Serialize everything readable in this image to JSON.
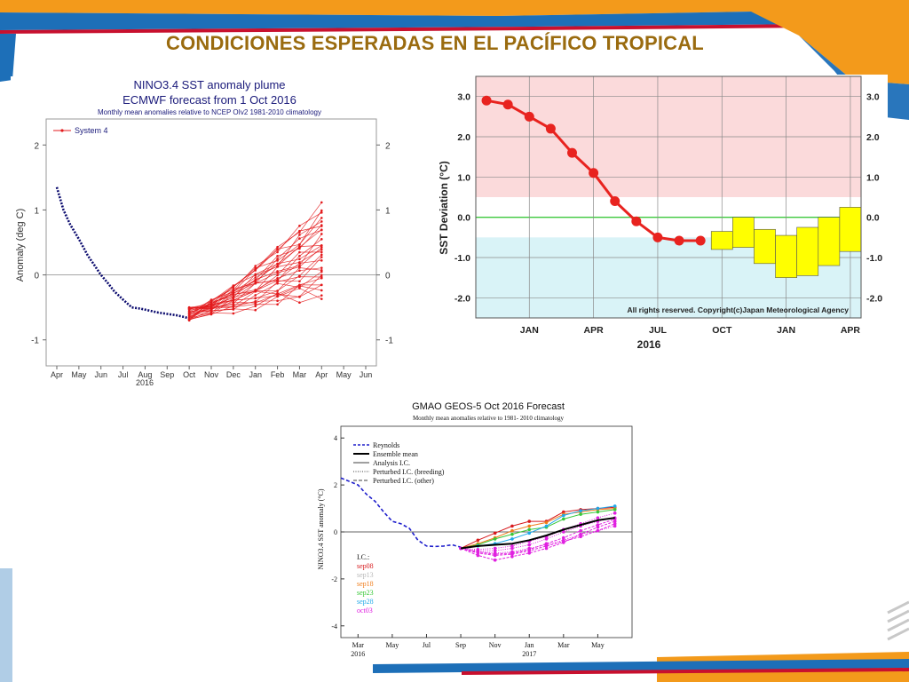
{
  "slide": {
    "title": "CONDICIONES ESPERADAS EN EL PACÍFICO TROPICAL"
  },
  "colors": {
    "title": "#9a6b0f",
    "accent_orange": "#f39a1b",
    "accent_blue": "#1d6fb8",
    "ecmwf_red": "#e31a1c",
    "jma_red": "#e8231f",
    "jma_yellow": "#ffff00",
    "jma_warm_band": "#fbdadb",
    "jma_cool_band": "#d9f3f7",
    "gmao_blue": "#1f1fcc"
  },
  "chart_data": [
    {
      "id": "ecmwf",
      "type": "line",
      "title": "NINO3.4 SST anomaly plume",
      "subtitle": "ECMWF forecast from 1 Oct 2016",
      "note": "Monthly mean anomalies relative to NCEP OIv2 1981-2010 climatology",
      "ylabel": "Anomaly (deg C)",
      "year_label": "2016",
      "legend": [
        "System 4"
      ],
      "legend_position": "top-left",
      "ylim": [
        -1.4,
        2.4
      ],
      "yticks": [
        -1,
        0,
        1,
        2
      ],
      "xticks": [
        "Apr",
        "May",
        "Jun",
        "Jul",
        "Aug",
        "Sep",
        "Oct",
        "Nov",
        "Dec",
        "Jan",
        "Feb",
        "Mar",
        "Apr",
        "May",
        "Jun"
      ],
      "observed": [
        1.35,
        1.0,
        0.78,
        0.55,
        0.3,
        0.15,
        0.0,
        -0.12,
        -0.25,
        -0.38,
        -0.5,
        -0.52,
        -0.55,
        -0.58,
        -0.6,
        -0.62,
        -0.65,
        -0.67
      ],
      "observed_x": [
        0.0,
        0.3,
        0.6,
        1.0,
        1.4,
        1.7,
        2.0,
        2.3,
        2.6,
        3.0,
        3.4,
        3.8,
        4.2,
        4.6,
        5.0,
        5.4,
        5.8,
        6.0
      ],
      "forecast_x": [
        6,
        7,
        8,
        9,
        10,
        11,
        12
      ],
      "forecast_start": -0.6,
      "forecast_end_values": [
        1.0,
        0.98,
        0.93,
        0.9,
        0.85,
        0.8,
        0.75,
        0.7,
        0.65,
        0.6,
        0.55,
        0.5,
        0.45,
        0.42,
        0.4,
        0.35,
        0.3,
        0.25,
        0.2,
        0.15,
        0.1,
        0.05,
        0.0,
        -0.05,
        -0.1,
        -0.15,
        -0.18,
        -0.2,
        -0.25,
        -0.3
      ],
      "forecast_min": -0.75,
      "series_color": "#e31a1c"
    },
    {
      "id": "jma",
      "type": "line",
      "ylabel": "SST Deviation (°C)",
      "copyright": "All rights reserved. Copyright(c)Japan Meteorological Agency",
      "year_label": "2016",
      "ylim": [
        -2.5,
        3.5
      ],
      "yticks": [
        -2.0,
        -1.0,
        0.0,
        1.0,
        2.0,
        3.0
      ],
      "ytick_labels": [
        "-2.0",
        "-1.0",
        "0.0",
        "1.0",
        "2.0",
        "3.0"
      ],
      "xticks": [
        "JAN",
        "APR",
        "JUL",
        "OCT",
        "JAN",
        "APR"
      ],
      "xtick_positions": [
        2,
        5,
        8,
        11,
        14,
        17
      ],
      "warm_threshold": 0.5,
      "cool_threshold": -0.5,
      "observed_x": [
        0,
        1,
        2,
        3,
        4,
        5,
        6,
        7,
        8,
        9,
        10
      ],
      "observed": [
        2.9,
        2.8,
        2.5,
        2.2,
        1.6,
        1.1,
        0.4,
        -0.1,
        -0.5,
        -0.58,
        -0.58
      ],
      "forecast_boxes": [
        {
          "month": 11,
          "low": -0.8,
          "high": -0.35
        },
        {
          "month": 12,
          "low": -0.75,
          "high": 0.0
        },
        {
          "month": 13,
          "low": -1.15,
          "high": -0.3
        },
        {
          "month": 14,
          "low": -1.5,
          "high": -0.45
        },
        {
          "month": 15,
          "low": -1.45,
          "high": -0.25
        },
        {
          "month": 16,
          "low": -1.2,
          "high": 0.0
        },
        {
          "month": 17,
          "low": -0.85,
          "high": 0.25
        }
      ]
    },
    {
      "id": "gmao",
      "type": "line",
      "title": "GMAO GEOS-5  Oct 2016 Forecast",
      "note": "Monthly mean anomalies relative to 1981- 2010 climatology",
      "ylabel": "NINO3.4 SST anomaly (°C)",
      "ylim": [
        -4.5,
        4.5
      ],
      "yticks": [
        -4,
        -2,
        0,
        2,
        4
      ],
      "xticks": [
        "Mar",
        "May",
        "Jul",
        "Sep",
        "Nov",
        "Jan",
        "Mar",
        "May"
      ],
      "xtick_positions": [
        0,
        2,
        4,
        6,
        8,
        10,
        12,
        14
      ],
      "year_labels": [
        {
          "label": "2016",
          "at": 0
        },
        {
          "label": "2017",
          "at": 10
        }
      ],
      "legend": [
        "Reynolds",
        "Ensemble mean",
        "Analysis I.C.",
        "Perturbed I.C. (breeding)",
        "Perturbed I.C. (other)"
      ],
      "ic_title": "I.C.:",
      "ic_members": [
        {
          "label": "sep08",
          "color": "#d7191c"
        },
        {
          "label": "sep13",
          "color": "#b8b8b8"
        },
        {
          "label": "sep18",
          "color": "#f07d1a"
        },
        {
          "label": "sep23",
          "color": "#38c838"
        },
        {
          "label": "sep28",
          "color": "#20a8e8"
        },
        {
          "label": "oct03",
          "color": "#e020e0"
        }
      ],
      "reynolds_x": [
        -1,
        -0.5,
        0,
        0.5,
        1,
        1.5,
        2,
        2.5,
        3,
        3.5,
        4,
        4.5,
        5,
        5.5,
        6
      ],
      "reynolds": [
        2.3,
        2.15,
        2.0,
        1.6,
        1.3,
        0.85,
        0.45,
        0.35,
        0.15,
        -0.35,
        -0.6,
        -0.62,
        -0.6,
        -0.55,
        -0.65
      ],
      "forecast_x": [
        6,
        7,
        8,
        9,
        10,
        11,
        12,
        13,
        14,
        15
      ],
      "ensemble_mean": [
        -0.7,
        -0.6,
        -0.55,
        -0.5,
        -0.35,
        -0.15,
        0.1,
        0.3,
        0.5,
        0.6
      ],
      "members": [
        {
          "color": "#d7191c",
          "values": [
            -0.7,
            -0.35,
            -0.05,
            0.25,
            0.45,
            0.45,
            0.85,
            0.95,
            1.0,
            1.05
          ]
        },
        {
          "color": "#f07d1a",
          "values": [
            -0.7,
            -0.5,
            -0.25,
            0.05,
            0.25,
            0.4,
            0.75,
            0.85,
            0.95,
            1.0
          ]
        },
        {
          "color": "#38c838",
          "values": [
            -0.7,
            -0.55,
            -0.3,
            -0.1,
            0.1,
            0.2,
            0.55,
            0.75,
            0.85,
            0.95
          ]
        },
        {
          "color": "#20a8e8",
          "values": [
            -0.7,
            -0.6,
            -0.5,
            -0.3,
            -0.05,
            0.25,
            0.7,
            0.9,
            1.0,
            1.1
          ]
        },
        {
          "color": "#e020e0",
          "values": [
            -0.7,
            -0.85,
            -0.9,
            -0.85,
            -0.7,
            -0.55,
            -0.35,
            -0.1,
            0.05,
            0.25
          ]
        },
        {
          "color": "#e020e0",
          "values": [
            -0.7,
            -0.9,
            -1.0,
            -0.95,
            -0.8,
            -0.6,
            -0.4,
            -0.2,
            0.05,
            0.35
          ]
        },
        {
          "color": "#e020e0",
          "values": [
            -0.7,
            -0.8,
            -0.8,
            -0.7,
            -0.55,
            -0.3,
            0.0,
            0.25,
            0.45,
            0.6
          ]
        },
        {
          "color": "#e020e0",
          "values": [
            -0.7,
            -1.0,
            -1.2,
            -1.05,
            -0.9,
            -0.7,
            -0.45,
            -0.1,
            0.2,
            0.45
          ]
        },
        {
          "color": "#e020e0",
          "values": [
            -0.7,
            -0.75,
            -0.7,
            -0.6,
            -0.4,
            -0.2,
            0.1,
            0.35,
            0.6,
            0.8
          ]
        },
        {
          "color": "#e020e0",
          "values": [
            -0.7,
            -0.85,
            -0.95,
            -0.9,
            -0.75,
            -0.5,
            -0.25,
            0.05,
            0.3,
            0.55
          ]
        }
      ]
    }
  ]
}
